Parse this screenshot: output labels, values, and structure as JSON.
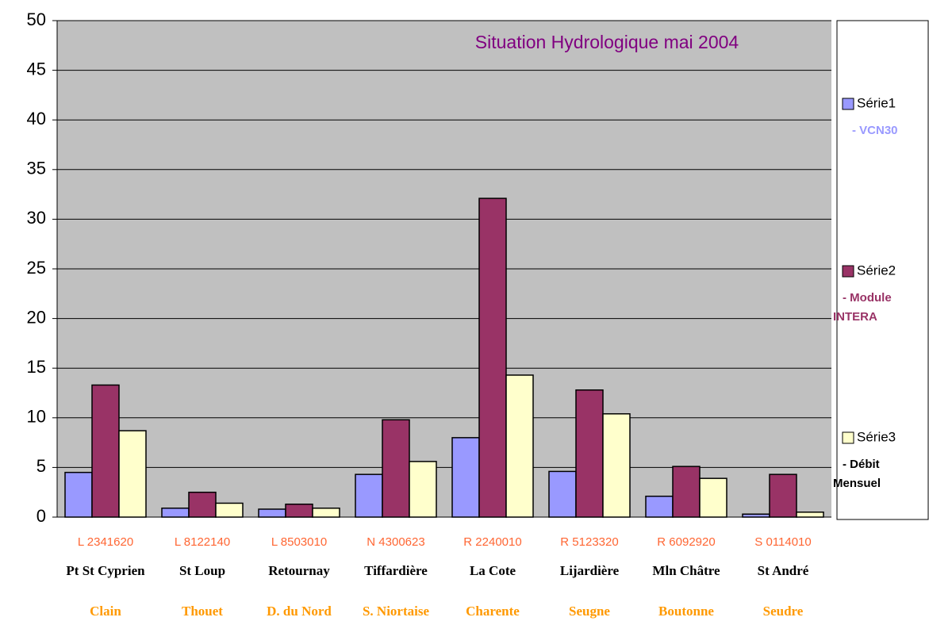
{
  "chart_data": {
    "type": "bar",
    "title": "Situation Hydrologique mai 2004",
    "categories": [
      "L 2341620",
      "L 8122140",
      "L 8503010",
      "N 4300623",
      "R 2240010",
      "R 5123320",
      "R 6092920",
      "S 0114010"
    ],
    "station_labels": [
      "Pt St Cyprien",
      "St Loup",
      "Retournay",
      "Tiffardière",
      "La Cote",
      "Lijardière",
      "Mln Châtre",
      "St André"
    ],
    "river_labels": [
      "Clain",
      "Thouet",
      "D. du Nord",
      "S. Niortaise",
      "Charente",
      "Seugne",
      "Boutonne",
      "Seudre"
    ],
    "series": [
      {
        "name": "Série1",
        "color": "#9999ff",
        "description_lines": [
          "- VCN30"
        ],
        "values": [
          4.5,
          0.9,
          0.8,
          4.3,
          8.0,
          4.6,
          2.1,
          0.3
        ]
      },
      {
        "name": "Série2",
        "color": "#993366",
        "description_lines": [
          "- Module",
          "INTERA"
        ],
        "values": [
          13.3,
          2.5,
          1.3,
          9.8,
          32.1,
          12.8,
          5.1,
          4.3
        ]
      },
      {
        "name": "Série3",
        "color": "#ffffcc",
        "description_lines": [
          "- Débit",
          "Mensuel"
        ],
        "values": [
          8.7,
          1.4,
          0.9,
          5.6,
          14.3,
          10.4,
          3.9,
          0.5
        ]
      }
    ],
    "ylim": [
      0,
      50
    ],
    "yticks": [
      0,
      5,
      10,
      15,
      20,
      25,
      30,
      35,
      40,
      45,
      50
    ],
    "grid": true
  }
}
